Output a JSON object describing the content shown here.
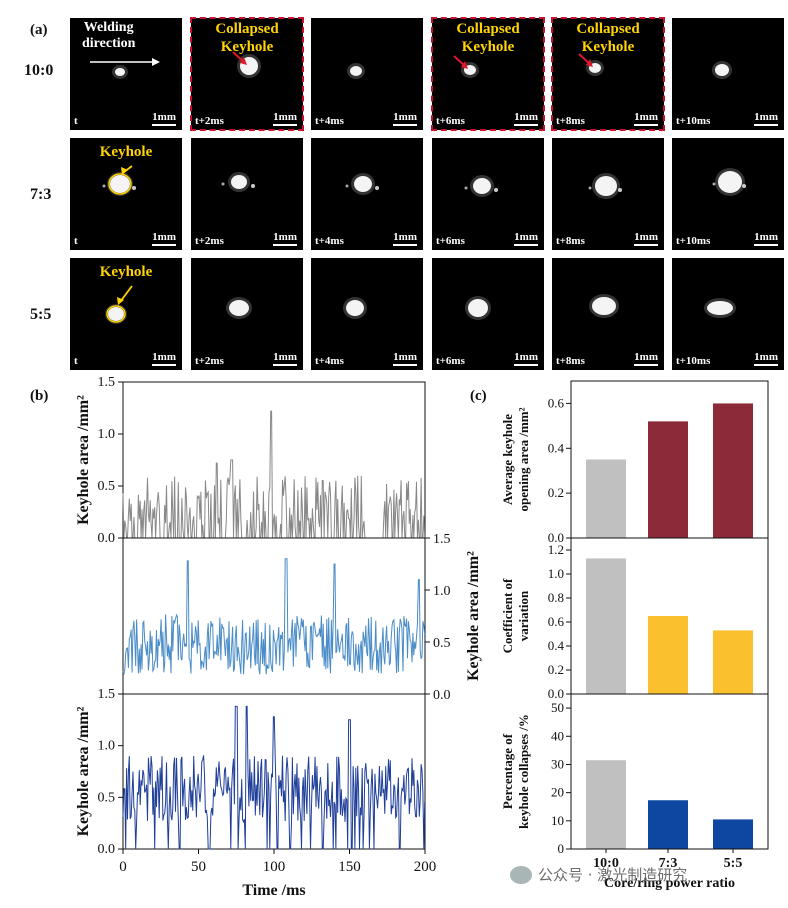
{
  "panel_a": {
    "label": "(a)",
    "direction_text": "Welding direction",
    "direction_line1": "Welding",
    "direction_line2": "direction",
    "scale_label": "1mm",
    "collapsed_line1": "Collapsed",
    "collapsed_line2": "Keyhole",
    "keyhole_label": "Keyhole",
    "row_labels": [
      "10:0",
      "7:3",
      "5:5"
    ],
    "time_labels": [
      "t",
      "t+2ms",
      "t+4ms",
      "t+6ms",
      "t+8ms",
      "t+10ms"
    ],
    "collapsed_frames_row1": [
      "t+2ms",
      "t+6ms",
      "t+8ms"
    ]
  },
  "panel_b": {
    "label": "(b)",
    "xlabel": "Time /ms",
    "ylabel": "Keyhole area /mm²",
    "xticks": [
      "0",
      "50",
      "100",
      "150",
      "200"
    ],
    "yticks_top": [
      "0.0",
      "0.5",
      "1.0",
      "1.5"
    ],
    "yticks_mid": [
      "0.0",
      "0.5",
      "1.0",
      "1.5"
    ],
    "yticks_bot": [
      "0.0",
      "0.5",
      "1.0",
      "1.5"
    ],
    "colors": {
      "gray": "#888888",
      "light_blue": "#4a8cc7",
      "dark_blue": "#1f3f99"
    }
  },
  "panel_c": {
    "label": "(c)",
    "xlabel": "Core/ring power ratio",
    "categories": [
      "10:0",
      "7:3",
      "5:5"
    ],
    "ylabel_top_1": "Average keyhole",
    "ylabel_top_2": "opening area /mm²",
    "ylabel_mid_1": "Coefficient of",
    "ylabel_mid_2": "variation",
    "ylabel_bot_1": "Percentage of",
    "ylabel_bot_2": "keyhole collapses /%",
    "yticks_top": [
      "0.0",
      "0.2",
      "0.4",
      "0.6"
    ],
    "yticks_mid": [
      "0.0",
      "0.2",
      "0.4",
      "0.6",
      "0.8",
      "1.0",
      "1.2"
    ],
    "yticks_bot": [
      "0",
      "10",
      "20",
      "30",
      "40",
      "50"
    ],
    "colors": {
      "gray": "#c0c0c0",
      "maroon": "#8c2a3a",
      "yellow": "#fbc02d",
      "blue": "#0d47a1"
    }
  },
  "chart_data": [
    {
      "type": "line",
      "title": "",
      "xlabel": "Time /ms",
      "ylabel": "Keyhole area /mm²",
      "xlim": [
        0,
        200
      ],
      "ylim": [
        0,
        1.5
      ],
      "series": [
        {
          "name": "10:0",
          "color": "#888888",
          "summary_peak": 1.22,
          "typical_range": [
            0.0,
            0.65
          ]
        },
        {
          "name": "7:3",
          "color": "#4a8cc7",
          "summary_peak": 1.3,
          "typical_range": [
            0.2,
            0.9
          ]
        },
        {
          "name": "5:5",
          "color": "#1f3f99",
          "summary_peak": 1.38,
          "typical_range": [
            0.1,
            1.0
          ]
        }
      ]
    },
    {
      "type": "bar",
      "categories": [
        "10:0",
        "7:3",
        "5:5"
      ],
      "series": [
        {
          "values": [
            0.35,
            0.52,
            0.6
          ]
        }
      ],
      "ylabel": "Average keyhole opening area /mm²",
      "ylim": [
        0,
        0.7
      ]
    },
    {
      "type": "bar",
      "categories": [
        "10:0",
        "7:3",
        "5:5"
      ],
      "series": [
        {
          "values": [
            1.13,
            0.65,
            0.53
          ]
        }
      ],
      "ylabel": "Coefficient of variation",
      "ylim": [
        0,
        1.3
      ]
    },
    {
      "type": "bar",
      "categories": [
        "10:0",
        "7:3",
        "5:5"
      ],
      "series": [
        {
          "values": [
            31.5,
            17.3,
            10.5
          ]
        }
      ],
      "ylabel": "Percentage of keyhole collapses /%",
      "xlabel": "Core/ring power ratio",
      "ylim": [
        0,
        55
      ]
    }
  ],
  "watermark": {
    "text": "公众号 · 激光制造研究"
  }
}
